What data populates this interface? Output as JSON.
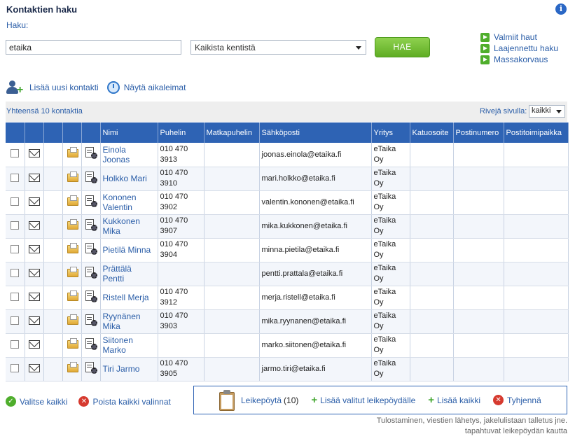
{
  "header": {
    "title": "Kontaktien haku",
    "info_icon": "info-icon"
  },
  "search": {
    "label": "Haku:",
    "value": "etaika",
    "field_select": "Kaikista kentistä",
    "button": "HAE"
  },
  "side_links": [
    "Valmiit haut",
    "Laajennettu haku",
    "Massakorvaus"
  ],
  "actions": {
    "add_contact": "Lisää uusi kontakti",
    "show_timestamps": "Näytä aikaleimat"
  },
  "summary": {
    "total": "Yhteensä 10 kontaktia",
    "rows_label": "Rivejä sivulla:",
    "rows_value": "kaikki"
  },
  "table": {
    "columns": [
      "Nimi",
      "Puhelin",
      "Matkapuhelin",
      "Sähköposti",
      "Yritys",
      "Katuosoite",
      "Postinumero",
      "Postitoimipaikka"
    ],
    "rows": [
      {
        "name": "Einola Joonas",
        "phone": "010 470 3913",
        "mobile": "",
        "email": "joonas.einola@etaika.fi",
        "company": "eTaika Oy"
      },
      {
        "name": "Holkko Mari",
        "phone": "010 470 3910",
        "mobile": "",
        "email": "mari.holkko@etaika.fi",
        "company": "eTaika Oy"
      },
      {
        "name": "Kononen Valentin",
        "phone": "010 470 3902",
        "mobile": "",
        "email": "valentin.kononen@etaika.fi",
        "company": "eTaika Oy"
      },
      {
        "name": "Kukkonen Mika",
        "phone": "010 470 3907",
        "mobile": "",
        "email": "mika.kukkonen@etaika.fi",
        "company": "eTaika Oy"
      },
      {
        "name": "Pietilä Minna",
        "phone": "010 470 3904",
        "mobile": "",
        "email": "minna.pietila@etaika.fi",
        "company": "eTaika Oy"
      },
      {
        "name": "Prättälä Pentti",
        "phone": "",
        "mobile": "",
        "email": "pentti.prattala@etaika.fi",
        "company": "eTaika Oy"
      },
      {
        "name": "Ristell Merja",
        "phone": "010 470 3912",
        "mobile": "",
        "email": "merja.ristell@etaika.fi",
        "company": "eTaika Oy"
      },
      {
        "name": "Ryynänen Mika",
        "phone": "010 470 3903",
        "mobile": "",
        "email": "mika.ryynanen@etaika.fi",
        "company": "eTaika Oy"
      },
      {
        "name": "Siitonen Marko",
        "phone": "",
        "mobile": "",
        "email": "marko.siitonen@etaika.fi",
        "company": "eTaika Oy"
      },
      {
        "name": "Tiri Jarmo",
        "phone": "010 470 3905",
        "mobile": "",
        "email": "jarmo.tiri@etaika.fi",
        "company": "eTaika Oy"
      }
    ]
  },
  "bottom": {
    "select_all": "Valitse kaikki",
    "clear_selections": "Poista kaikki valinnat",
    "clipboard": "Leikepöytä",
    "clipboard_count": "(10)",
    "add_selected": "Lisää valitut leikepöydälle",
    "add_all": "Lisää kaikki",
    "empty": "Tyhjennä",
    "note_line1": "Tulostaminen, viestien lähetys, jakelulistaan talletus jne.",
    "note_line2": "tapahtuvat leikepöydän kautta"
  }
}
